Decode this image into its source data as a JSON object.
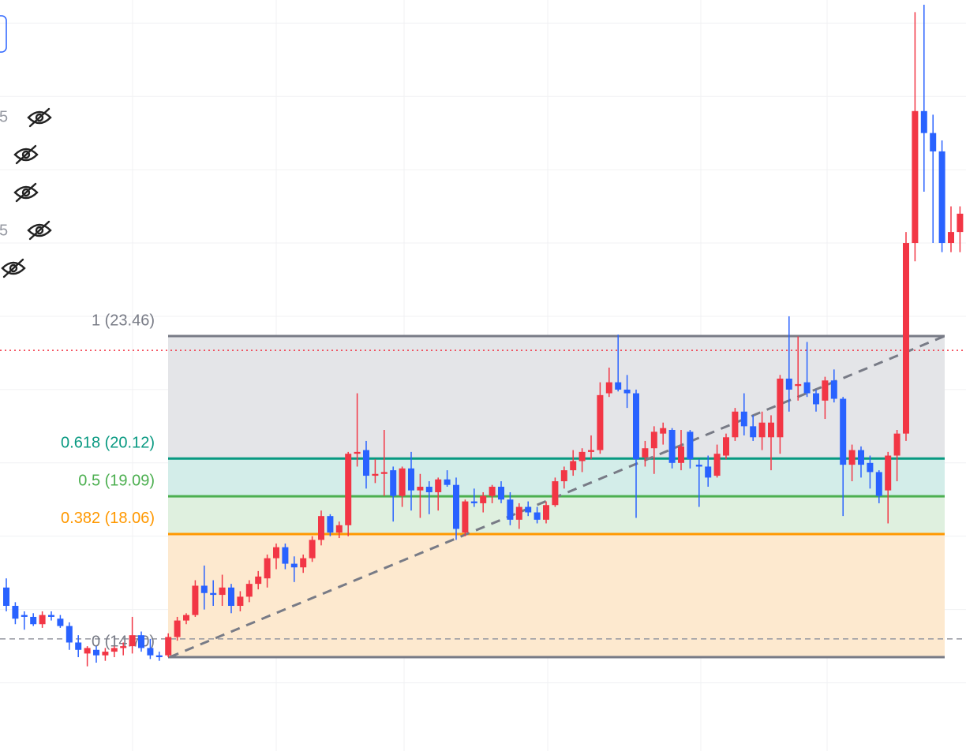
{
  "chart_data": {
    "type": "candlestick",
    "ylim": [
      12.14,
      32.63
    ],
    "ygrid": [
      14,
      16,
      18,
      20,
      22,
      24,
      26,
      28,
      30,
      32
    ],
    "up_color": "#f23645",
    "down_color": "#2962ff",
    "open": [
      16.6,
      16.1,
      15.85,
      15.8,
      15.6,
      15.85,
      15.75,
      15.55,
      15.1,
      14.8,
      14.9,
      14.75,
      14.85,
      14.95,
      15.0,
      15.3,
      14.95,
      14.75,
      14.75,
      15.25,
      15.7,
      15.85,
      16.65,
      16.45,
      16.4,
      16.6,
      16.1,
      16.35,
      16.7,
      16.85,
      17.4,
      17.7,
      17.25,
      17.15,
      17.4,
      17.9,
      18.55,
      18.1,
      18.3,
      20.25,
      20.35,
      19.65,
      19.7,
      19.8,
      19.1,
      19.85,
      19.25,
      19.35,
      19.2,
      19.55,
      19.4,
      18.1,
      18.95,
      18.9,
      19.1,
      19.35,
      19.0,
      18.45,
      18.8,
      18.65,
      18.45,
      18.85,
      19.5,
      19.8,
      20.05,
      20.3,
      20.35,
      21.9,
      22.2,
      22.0,
      21.9,
      20.15,
      20.4,
      20.8,
      20.9,
      20.0,
      20.85,
      19.95,
      19.9,
      19.65,
      20.2,
      20.7,
      21.4,
      21.0,
      20.7,
      20.7,
      20.7,
      22.3,
      22.1,
      22.2,
      21.9,
      21.7,
      22.25,
      21.75,
      19.95,
      20.35,
      20.0,
      19.75,
      19.25,
      20.2,
      20.8,
      26.0,
      29.6,
      29.0,
      28.5,
      26.0,
      26.3
    ],
    "high": [
      16.85,
      16.2,
      15.95,
      15.9,
      15.95,
      15.95,
      15.85,
      15.65,
      15.3,
      15.0,
      15.0,
      14.95,
      15.0,
      15.1,
      15.8,
      15.4,
      15.2,
      14.85,
      15.35,
      15.8,
      15.9,
      16.8,
      17.2,
      16.8,
      16.95,
      16.7,
      16.5,
      16.8,
      17.05,
      17.5,
      17.8,
      17.8,
      17.45,
      17.5,
      18.0,
      18.7,
      18.6,
      18.4,
      20.3,
      21.9,
      20.6,
      20.1,
      20.9,
      19.9,
      19.9,
      20.3,
      19.7,
      19.5,
      19.6,
      19.8,
      19.6,
      19.0,
      19.3,
      19.2,
      19.4,
      19.5,
      19.2,
      18.9,
      18.95,
      18.8,
      18.95,
      19.6,
      19.9,
      20.35,
      20.4,
      20.75,
      22.2,
      22.6,
      23.5,
      22.4,
      22.0,
      20.6,
      21.0,
      21.1,
      20.95,
      20.9,
      20.9,
      20.1,
      20.2,
      20.5,
      20.8,
      21.5,
      21.9,
      21.3,
      21.4,
      21.3,
      22.4,
      24.0,
      23.45,
      23.3,
      22.0,
      22.35,
      22.55,
      21.8,
      20.5,
      20.45,
      20.2,
      19.8,
      20.3,
      20.9,
      26.3,
      32.3,
      32.5,
      29.5,
      28.8,
      27.0,
      27.0
    ],
    "low": [
      15.95,
      15.6,
      15.45,
      15.55,
      15.5,
      15.7,
      15.5,
      14.9,
      14.7,
      14.45,
      14.55,
      14.6,
      14.7,
      14.75,
      14.8,
      14.85,
      14.65,
      14.6,
      14.7,
      15.15,
      15.6,
      15.8,
      16.0,
      16.1,
      16.1,
      15.9,
      15.95,
      16.2,
      16.55,
      16.6,
      17.1,
      17.1,
      16.75,
      17.0,
      17.3,
      17.75,
      18.0,
      17.95,
      18.0,
      19.9,
      19.3,
      19.45,
      19.1,
      18.4,
      18.8,
      18.7,
      18.5,
      18.6,
      18.7,
      19.35,
      17.9,
      18.0,
      18.8,
      18.65,
      18.9,
      18.9,
      18.3,
      18.2,
      18.55,
      18.35,
      18.35,
      18.8,
      19.3,
      19.65,
      19.75,
      20.1,
      20.25,
      21.8,
      21.95,
      21.5,
      18.5,
      19.9,
      19.7,
      20.5,
      19.85,
      19.8,
      19.85,
      18.8,
      19.35,
      19.6,
      20.1,
      20.6,
      20.75,
      20.6,
      20.35,
      19.8,
      20.25,
      21.4,
      21.7,
      21.8,
      21.4,
      21.2,
      21.65,
      18.55,
      19.5,
      19.6,
      19.3,
      18.9,
      18.35,
      19.5,
      20.6,
      25.5,
      27.4,
      26.0,
      25.75,
      25.75,
      25.75
    ],
    "close": [
      16.1,
      15.75,
      15.8,
      15.6,
      15.85,
      15.8,
      15.55,
      15.1,
      14.9,
      14.95,
      14.75,
      14.85,
      14.95,
      15.0,
      15.3,
      14.95,
      14.75,
      14.7,
      15.25,
      15.7,
      15.85,
      16.65,
      16.45,
      16.4,
      16.6,
      16.1,
      16.35,
      16.7,
      16.9,
      17.4,
      17.7,
      17.25,
      17.15,
      17.4,
      17.9,
      18.55,
      18.1,
      18.3,
      20.25,
      20.3,
      19.65,
      19.7,
      19.75,
      19.1,
      19.85,
      19.25,
      19.35,
      19.2,
      19.55,
      19.4,
      18.2,
      18.95,
      18.9,
      19.1,
      19.35,
      19.0,
      18.45,
      18.8,
      18.65,
      18.45,
      18.85,
      19.5,
      19.8,
      20.05,
      20.3,
      20.35,
      21.85,
      22.2,
      22.0,
      21.9,
      20.1,
      20.4,
      20.85,
      20.95,
      20.0,
      20.45,
      20.1,
      19.9,
      19.6,
      20.25,
      20.7,
      21.4,
      21.0,
      20.7,
      21.1,
      21.1,
      22.3,
      22.0,
      22.15,
      21.9,
      21.6,
      22.25,
      21.75,
      19.95,
      20.35,
      19.95,
      19.75,
      19.1,
      20.2,
      20.8,
      26.0,
      29.6,
      29.0,
      28.5,
      26.0,
      26.3,
      26.8
    ],
    "fib_levels": [
      {
        "label": "1 (23.46)",
        "price": 23.46,
        "color": "#787b86",
        "fill": "#e4e5e8"
      },
      {
        "label": "0.618 (20.12)",
        "price": 20.12,
        "color": "#089981",
        "fill": "#d3ede9"
      },
      {
        "label": "0.5 (19.09)",
        "price": 19.09,
        "color": "#4caf50",
        "fill": "#dff0df"
      },
      {
        "label": "0.382 (18.06)",
        "price": 18.06,
        "color": "#ff9800",
        "fill": "#fde9cf"
      },
      {
        "label": "0 (14.70)",
        "price": 14.7,
        "color": "#787b86"
      }
    ],
    "hlines": [
      {
        "value": 23.07,
        "color": "#f23645",
        "dash": "2 4"
      },
      {
        "value": 15.2,
        "color": "#9598a1",
        "dash": "7 5"
      }
    ],
    "side_labels": [
      "5",
      "5"
    ]
  }
}
